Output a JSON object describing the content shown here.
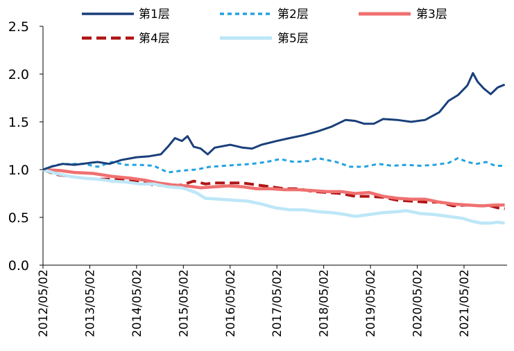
{
  "chart_data": {
    "type": "line",
    "title": "",
    "xlabel": "",
    "ylabel": "",
    "ylim": [
      0,
      2.5
    ],
    "yticks": [
      "0.0",
      "0.5",
      "1.0",
      "1.5",
      "2.0",
      "2.5"
    ],
    "ytick_values": [
      0,
      0.5,
      1.0,
      1.5,
      2.0,
      2.5
    ],
    "x_range": [
      2012.33,
      2022.25
    ],
    "xticks": [
      {
        "label": "2012/05/02",
        "t": 2012.33
      },
      {
        "label": "2013/05/02",
        "t": 2013.33
      },
      {
        "label": "2014/05/02",
        "t": 2014.33
      },
      {
        "label": "2015/05/02",
        "t": 2015.33
      },
      {
        "label": "2016/05/02",
        "t": 2016.33
      },
      {
        "label": "2017/05/02",
        "t": 2017.33
      },
      {
        "label": "2018/05/02",
        "t": 2018.33
      },
      {
        "label": "2019/05/02",
        "t": 2019.33
      },
      {
        "label": "2020/05/02",
        "t": 2020.33
      },
      {
        "label": "2021/05/02",
        "t": 2021.33
      }
    ],
    "legend_position": "top",
    "series": [
      {
        "name": "第1层",
        "color": "#1a3f7a",
        "style": "solid",
        "points": [
          [
            2012.33,
            1.0
          ],
          [
            2012.5,
            1.03
          ],
          [
            2012.75,
            1.06
          ],
          [
            2013.0,
            1.05
          ],
          [
            2013.33,
            1.07
          ],
          [
            2013.5,
            1.08
          ],
          [
            2013.75,
            1.06
          ],
          [
            2014.0,
            1.1
          ],
          [
            2014.33,
            1.13
          ],
          [
            2014.6,
            1.14
          ],
          [
            2014.85,
            1.16
          ],
          [
            2015.0,
            1.24
          ],
          [
            2015.15,
            1.33
          ],
          [
            2015.3,
            1.3
          ],
          [
            2015.42,
            1.35
          ],
          [
            2015.55,
            1.24
          ],
          [
            2015.7,
            1.22
          ],
          [
            2015.85,
            1.16
          ],
          [
            2016.0,
            1.23
          ],
          [
            2016.33,
            1.26
          ],
          [
            2016.6,
            1.23
          ],
          [
            2016.8,
            1.22
          ],
          [
            2017.0,
            1.26
          ],
          [
            2017.33,
            1.3
          ],
          [
            2017.6,
            1.33
          ],
          [
            2017.9,
            1.36
          ],
          [
            2018.2,
            1.4
          ],
          [
            2018.5,
            1.45
          ],
          [
            2018.8,
            1.52
          ],
          [
            2019.0,
            1.51
          ],
          [
            2019.2,
            1.48
          ],
          [
            2019.4,
            1.48
          ],
          [
            2019.6,
            1.53
          ],
          [
            2019.9,
            1.52
          ],
          [
            2020.2,
            1.5
          ],
          [
            2020.5,
            1.52
          ],
          [
            2020.8,
            1.6
          ],
          [
            2021.0,
            1.72
          ],
          [
            2021.2,
            1.78
          ],
          [
            2021.4,
            1.88
          ],
          [
            2021.52,
            2.01
          ],
          [
            2021.62,
            1.92
          ],
          [
            2021.75,
            1.85
          ],
          [
            2021.9,
            1.79
          ],
          [
            2022.05,
            1.86
          ],
          [
            2022.2,
            1.89
          ]
        ]
      },
      {
        "name": "第2层",
        "color": "#22a2e0",
        "style": "short-dash",
        "points": [
          [
            2012.33,
            1.0
          ],
          [
            2012.6,
            1.05
          ],
          [
            2012.9,
            1.06
          ],
          [
            2013.2,
            1.06
          ],
          [
            2013.5,
            1.03
          ],
          [
            2013.8,
            1.08
          ],
          [
            2014.1,
            1.05
          ],
          [
            2014.4,
            1.05
          ],
          [
            2014.7,
            1.04
          ],
          [
            2015.0,
            0.97
          ],
          [
            2015.3,
            0.99
          ],
          [
            2015.6,
            1.0
          ],
          [
            2015.9,
            1.03
          ],
          [
            2016.2,
            1.04
          ],
          [
            2016.5,
            1.05
          ],
          [
            2016.8,
            1.06
          ],
          [
            2017.1,
            1.08
          ],
          [
            2017.4,
            1.11
          ],
          [
            2017.7,
            1.08
          ],
          [
            2018.0,
            1.09
          ],
          [
            2018.2,
            1.12
          ],
          [
            2018.4,
            1.1
          ],
          [
            2018.6,
            1.08
          ],
          [
            2018.9,
            1.03
          ],
          [
            2019.2,
            1.03
          ],
          [
            2019.5,
            1.06
          ],
          [
            2019.8,
            1.04
          ],
          [
            2020.1,
            1.05
          ],
          [
            2020.4,
            1.04
          ],
          [
            2020.7,
            1.05
          ],
          [
            2021.0,
            1.07
          ],
          [
            2021.2,
            1.12
          ],
          [
            2021.4,
            1.08
          ],
          [
            2021.6,
            1.06
          ],
          [
            2021.8,
            1.08
          ],
          [
            2022.0,
            1.04
          ],
          [
            2022.2,
            1.04
          ]
        ]
      },
      {
        "name": "第3层",
        "color": "#f07070",
        "style": "solid-thick",
        "points": [
          [
            2012.33,
            1.0
          ],
          [
            2012.7,
            0.99
          ],
          [
            2013.0,
            0.97
          ],
          [
            2013.4,
            0.96
          ],
          [
            2013.8,
            0.93
          ],
          [
            2014.2,
            0.91
          ],
          [
            2014.5,
            0.89
          ],
          [
            2014.8,
            0.86
          ],
          [
            2015.1,
            0.84
          ],
          [
            2015.4,
            0.83
          ],
          [
            2015.7,
            0.81
          ],
          [
            2016.0,
            0.82
          ],
          [
            2016.3,
            0.83
          ],
          [
            2016.6,
            0.82
          ],
          [
            2016.9,
            0.8
          ],
          [
            2017.2,
            0.8
          ],
          [
            2017.5,
            0.79
          ],
          [
            2017.8,
            0.79
          ],
          [
            2018.1,
            0.78
          ],
          [
            2018.4,
            0.77
          ],
          [
            2018.7,
            0.77
          ],
          [
            2019.0,
            0.75
          ],
          [
            2019.3,
            0.76
          ],
          [
            2019.6,
            0.72
          ],
          [
            2019.9,
            0.7
          ],
          [
            2020.2,
            0.69
          ],
          [
            2020.5,
            0.69
          ],
          [
            2020.8,
            0.66
          ],
          [
            2021.1,
            0.64
          ],
          [
            2021.4,
            0.63
          ],
          [
            2021.7,
            0.62
          ],
          [
            2022.0,
            0.63
          ],
          [
            2022.2,
            0.63
          ]
        ]
      },
      {
        "name": "第4层",
        "color": "#b01515",
        "style": "long-dash",
        "points": [
          [
            2012.33,
            1.0
          ],
          [
            2012.6,
            0.95
          ],
          [
            2012.9,
            0.93
          ],
          [
            2013.2,
            0.91
          ],
          [
            2013.5,
            0.9
          ],
          [
            2013.8,
            0.9
          ],
          [
            2014.1,
            0.89
          ],
          [
            2014.4,
            0.87
          ],
          [
            2014.7,
            0.84
          ],
          [
            2015.0,
            0.83
          ],
          [
            2015.3,
            0.84
          ],
          [
            2015.55,
            0.88
          ],
          [
            2015.8,
            0.85
          ],
          [
            2016.0,
            0.86
          ],
          [
            2016.3,
            0.86
          ],
          [
            2016.6,
            0.86
          ],
          [
            2016.9,
            0.84
          ],
          [
            2017.2,
            0.82
          ],
          [
            2017.5,
            0.8
          ],
          [
            2017.8,
            0.8
          ],
          [
            2018.1,
            0.77
          ],
          [
            2018.4,
            0.76
          ],
          [
            2018.7,
            0.75
          ],
          [
            2019.0,
            0.72
          ],
          [
            2019.3,
            0.72
          ],
          [
            2019.6,
            0.71
          ],
          [
            2019.9,
            0.68
          ],
          [
            2020.2,
            0.67
          ],
          [
            2020.5,
            0.66
          ],
          [
            2020.8,
            0.66
          ],
          [
            2021.1,
            0.62
          ],
          [
            2021.4,
            0.63
          ],
          [
            2021.7,
            0.62
          ],
          [
            2021.9,
            0.62
          ],
          [
            2022.05,
            0.6
          ],
          [
            2022.2,
            0.59
          ]
        ]
      },
      {
        "name": "第5层",
        "color": "#bde7f7",
        "style": "solid-thick",
        "points": [
          [
            2012.33,
            1.0
          ],
          [
            2012.6,
            0.96
          ],
          [
            2012.9,
            0.93
          ],
          [
            2013.2,
            0.91
          ],
          [
            2013.5,
            0.9
          ],
          [
            2013.8,
            0.88
          ],
          [
            2014.1,
            0.87
          ],
          [
            2014.4,
            0.85
          ],
          [
            2014.7,
            0.85
          ],
          [
            2015.0,
            0.82
          ],
          [
            2015.3,
            0.81
          ],
          [
            2015.6,
            0.76
          ],
          [
            2015.8,
            0.7
          ],
          [
            2016.1,
            0.69
          ],
          [
            2016.4,
            0.68
          ],
          [
            2016.7,
            0.67
          ],
          [
            2017.0,
            0.64
          ],
          [
            2017.3,
            0.6
          ],
          [
            2017.6,
            0.58
          ],
          [
            2017.9,
            0.58
          ],
          [
            2018.2,
            0.56
          ],
          [
            2018.5,
            0.55
          ],
          [
            2018.8,
            0.53
          ],
          [
            2019.0,
            0.51
          ],
          [
            2019.3,
            0.53
          ],
          [
            2019.6,
            0.55
          ],
          [
            2019.9,
            0.56
          ],
          [
            2020.1,
            0.57
          ],
          [
            2020.4,
            0.54
          ],
          [
            2020.7,
            0.53
          ],
          [
            2021.0,
            0.51
          ],
          [
            2021.3,
            0.49
          ],
          [
            2021.5,
            0.46
          ],
          [
            2021.7,
            0.44
          ],
          [
            2021.9,
            0.44
          ],
          [
            2022.05,
            0.45
          ],
          [
            2022.2,
            0.44
          ]
        ]
      }
    ]
  }
}
